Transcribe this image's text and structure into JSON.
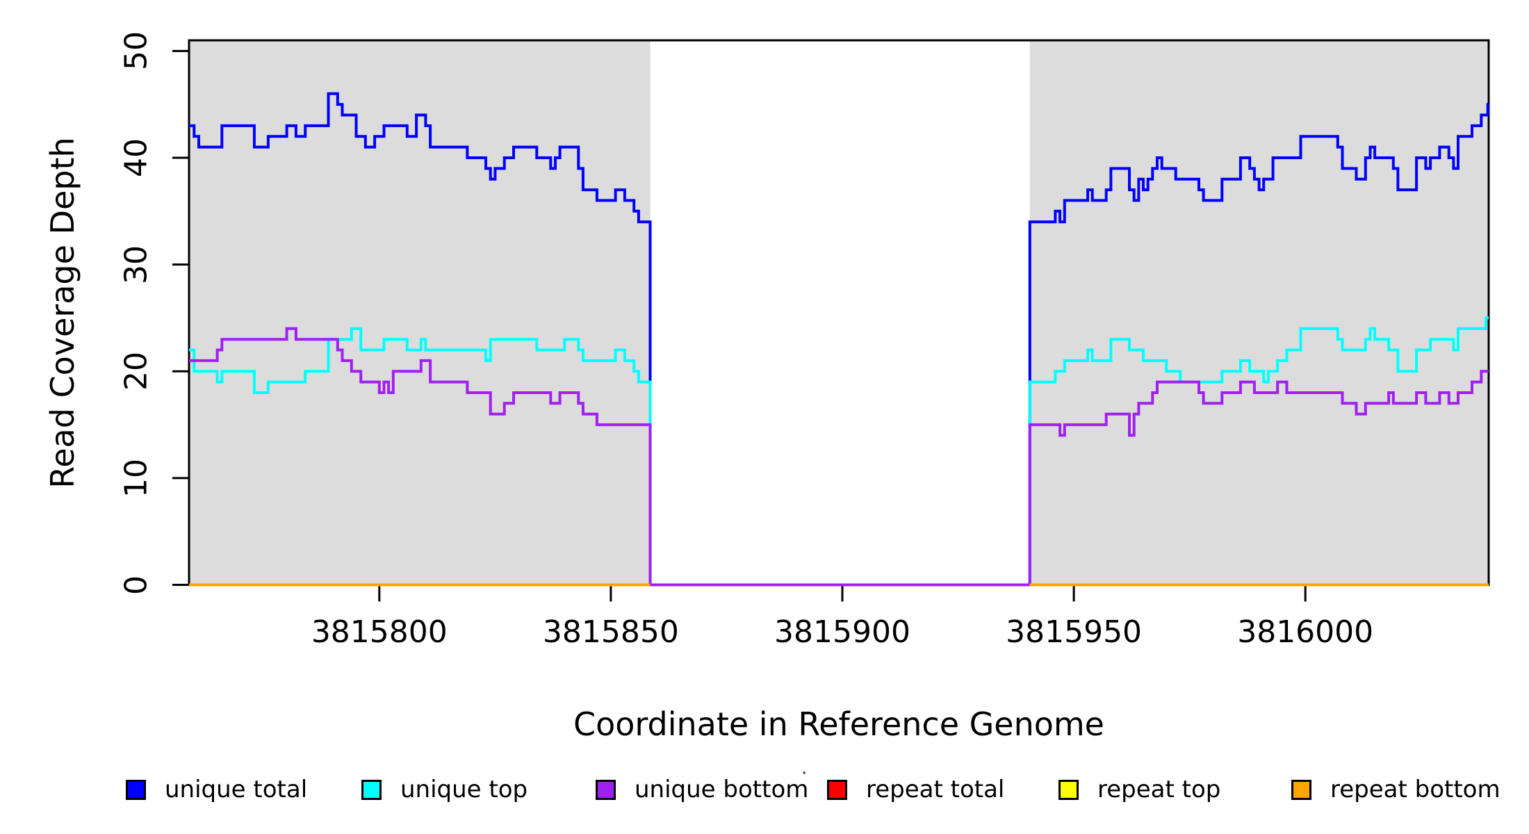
{
  "figure": {
    "y_axis_title": "Read Coverage Depth",
    "x_axis_title": "Coordinate in Reference Genome"
  },
  "legend": {
    "stray_mark": "·",
    "items": [
      {
        "label": "unique total",
        "color": "#0000FF"
      },
      {
        "label": "unique top",
        "color": "#00FFFF"
      },
      {
        "label": "unique bottom",
        "color": "#A020F0"
      },
      {
        "label": "repeat total",
        "color": "#FF0000"
      },
      {
        "label": "repeat top",
        "color": "#FFFF00"
      },
      {
        "label": "repeat bottom",
        "color": "#FFA500"
      }
    ]
  },
  "chart_data": {
    "type": "line",
    "step": true,
    "title": "",
    "xlabel": "Coordinate in Reference Genome",
    "ylabel": "Read Coverage Depth",
    "xlim": [
      3815758.9,
      3816039.6
    ],
    "ylim": [
      0,
      51
    ],
    "x_ticks": [
      "3815800",
      "3815850",
      "3815900",
      "3815950",
      "3816000"
    ],
    "x_tick_values": [
      3815800,
      3815850,
      3815900,
      3815950,
      3816000
    ],
    "y_ticks": [
      "0",
      "10",
      "20",
      "30",
      "40",
      "50"
    ],
    "y_tick_values": [
      0,
      10,
      20,
      30,
      40,
      50
    ],
    "grid": false,
    "legend_position": "bottom",
    "shade_color": "#DCDCDC",
    "box_color": "#000000",
    "shaded_regions": [
      {
        "from": 3815758.9,
        "to": 3815858.5
      },
      {
        "from": 3815940.5,
        "to": 3816039.6
      }
    ],
    "gap_region": {
      "from": 3815858.5,
      "to": 3815940.5,
      "note": "zero coverage gap"
    },
    "series": [
      {
        "name": "unique total",
        "color": "#0000FF",
        "segments": [
          [
            [
              3815758.9,
              43
            ],
            [
              3815760,
              42
            ],
            [
              3815761,
              41
            ],
            [
              3815766,
              43
            ],
            [
              3815773,
              41
            ],
            [
              3815776,
              42
            ],
            [
              3815780,
              43
            ],
            [
              3815782,
              42
            ],
            [
              3815784,
              43
            ],
            [
              3815789,
              46
            ],
            [
              3815791,
              45
            ],
            [
              3815792,
              44
            ],
            [
              3815795,
              42
            ],
            [
              3815797,
              41
            ],
            [
              3815799,
              42
            ],
            [
              3815801,
              43
            ],
            [
              3815806,
              42
            ],
            [
              3815808,
              44
            ],
            [
              3815810,
              43
            ],
            [
              3815811,
              41
            ],
            [
              3815819,
              40
            ],
            [
              3815823,
              39
            ],
            [
              3815824,
              38
            ],
            [
              3815825,
              39
            ],
            [
              3815827,
              40
            ],
            [
              3815829,
              41
            ],
            [
              3815834,
              40
            ],
            [
              3815837,
              39
            ],
            [
              3815838,
              40
            ],
            [
              3815839,
              41
            ],
            [
              3815843,
              39
            ],
            [
              3815844,
              37
            ],
            [
              3815847,
              36
            ],
            [
              3815851,
              37
            ],
            [
              3815853,
              36
            ],
            [
              3815855,
              35
            ],
            [
              3815856,
              34
            ],
            [
              3815858.5,
              0
            ],
            [
              3815940.5,
              34
            ],
            [
              3815946,
              35
            ],
            [
              3815947,
              34
            ],
            [
              3815948,
              36
            ],
            [
              3815953,
              37
            ],
            [
              3815954,
              36
            ],
            [
              3815957,
              37
            ],
            [
              3815958,
              39
            ],
            [
              3815962,
              37
            ],
            [
              3815963,
              36
            ],
            [
              3815964,
              38
            ],
            [
              3815965,
              37
            ],
            [
              3815966,
              38
            ],
            [
              3815967,
              39
            ],
            [
              3815968,
              40
            ],
            [
              3815969,
              39
            ],
            [
              3815972,
              38
            ],
            [
              3815977,
              37
            ],
            [
              3815978,
              36
            ],
            [
              3815982,
              38
            ],
            [
              3815986,
              40
            ],
            [
              3815988,
              39
            ],
            [
              3815989,
              38
            ],
            [
              3815990,
              37
            ],
            [
              3815991,
              38
            ],
            [
              3815993,
              40
            ],
            [
              3815999,
              42
            ],
            [
              3816007,
              41
            ],
            [
              3816008,
              39
            ],
            [
              3816011,
              38
            ],
            [
              3816013,
              40
            ],
            [
              3816014,
              41
            ],
            [
              3816015,
              40
            ],
            [
              3816019,
              39
            ],
            [
              3816020,
              37
            ],
            [
              3816024,
              40
            ],
            [
              3816026,
              39
            ],
            [
              3816027,
              40
            ],
            [
              3816029,
              41
            ],
            [
              3816031,
              40
            ],
            [
              3816032,
              39
            ],
            [
              3816033,
              42
            ],
            [
              3816036,
              43
            ],
            [
              3816038,
              44
            ],
            [
              3816039.4,
              45
            ],
            [
              3816039.6,
              45
            ]
          ]
        ]
      },
      {
        "name": "unique top",
        "color": "#00FFFF",
        "segments": [
          [
            [
              3815758.9,
              22
            ],
            [
              3815760,
              20
            ],
            [
              3815765,
              19
            ],
            [
              3815766,
              20
            ],
            [
              3815773,
              18
            ],
            [
              3815776,
              19
            ],
            [
              3815784,
              20
            ],
            [
              3815789,
              23
            ],
            [
              3815794,
              24
            ],
            [
              3815796,
              22
            ],
            [
              3815801,
              23
            ],
            [
              3815806,
              22
            ],
            [
              3815809,
              23
            ],
            [
              3815810,
              22
            ],
            [
              3815823,
              21
            ],
            [
              3815824,
              23
            ],
            [
              3815834,
              22
            ],
            [
              3815840,
              23
            ],
            [
              3815843,
              22
            ],
            [
              3815844,
              21
            ],
            [
              3815851,
              22
            ],
            [
              3815853,
              21
            ],
            [
              3815855,
              20
            ],
            [
              3815856,
              19
            ],
            [
              3815858.5,
              0
            ],
            [
              3815940.5,
              19
            ],
            [
              3815946,
              20
            ],
            [
              3815948,
              21
            ],
            [
              3815953,
              22
            ],
            [
              3815954,
              21
            ],
            [
              3815958,
              23
            ],
            [
              3815962,
              22
            ],
            [
              3815965,
              21
            ],
            [
              3815970,
              20
            ],
            [
              3815973,
              19
            ],
            [
              3815982,
              20
            ],
            [
              3815986,
              21
            ],
            [
              3815988,
              20
            ],
            [
              3815991,
              19
            ],
            [
              3815992,
              20
            ],
            [
              3815994,
              21
            ],
            [
              3815996,
              22
            ],
            [
              3815999,
              24
            ],
            [
              3816007,
              23
            ],
            [
              3816008,
              22
            ],
            [
              3816013,
              23
            ],
            [
              3816014,
              24
            ],
            [
              3816015,
              23
            ],
            [
              3816018,
              22
            ],
            [
              3816020,
              20
            ],
            [
              3816024,
              22
            ],
            [
              3816027,
              23
            ],
            [
              3816032,
              22
            ],
            [
              3816033,
              24
            ],
            [
              3816039,
              25
            ],
            [
              3816039.6,
              25
            ]
          ]
        ]
      },
      {
        "name": "unique bottom",
        "color": "#A020F0",
        "segments": [
          [
            [
              3815758.9,
              21
            ],
            [
              3815765,
              22
            ],
            [
              3815766,
              23
            ],
            [
              3815780,
              24
            ],
            [
              3815782,
              23
            ],
            [
              3815791,
              22
            ],
            [
              3815792,
              21
            ],
            [
              3815794,
              20
            ],
            [
              3815796,
              19
            ],
            [
              3815800,
              18
            ],
            [
              3815801,
              19
            ],
            [
              3815802,
              18
            ],
            [
              3815803,
              20
            ],
            [
              3815809,
              21
            ],
            [
              3815811,
              19
            ],
            [
              3815819,
              18
            ],
            [
              3815824,
              16
            ],
            [
              3815827,
              17
            ],
            [
              3815829,
              18
            ],
            [
              3815837,
              17
            ],
            [
              3815839,
              18
            ],
            [
              3815843,
              17
            ],
            [
              3815844,
              16
            ],
            [
              3815847,
              15
            ],
            [
              3815858.5,
              0
            ],
            [
              3815940.5,
              15
            ],
            [
              3815947,
              14
            ],
            [
              3815948,
              15
            ],
            [
              3815957,
              16
            ],
            [
              3815962,
              14
            ],
            [
              3815963,
              16
            ],
            [
              3815964,
              17
            ],
            [
              3815967,
              18
            ],
            [
              3815968,
              19
            ],
            [
              3815977,
              18
            ],
            [
              3815978,
              17
            ],
            [
              3815982,
              18
            ],
            [
              3815986,
              19
            ],
            [
              3815989,
              18
            ],
            [
              3815994,
              19
            ],
            [
              3815996,
              18
            ],
            [
              3816008,
              17
            ],
            [
              3816011,
              16
            ],
            [
              3816013,
              17
            ],
            [
              3816018,
              18
            ],
            [
              3816019,
              17
            ],
            [
              3816024,
              18
            ],
            [
              3816026,
              17
            ],
            [
              3816029,
              18
            ],
            [
              3816031,
              17
            ],
            [
              3816033,
              18
            ],
            [
              3816036,
              19
            ],
            [
              3816038,
              20
            ],
            [
              3816039.6,
              20
            ]
          ]
        ]
      },
      {
        "name": "repeat total",
        "color": "#FF0000",
        "segments": [
          [
            [
              3815758.9,
              0
            ],
            [
              3815858.5,
              0
            ]
          ],
          [
            [
              3815940.5,
              0
            ],
            [
              3816039.6,
              0
            ]
          ]
        ]
      },
      {
        "name": "repeat top",
        "color": "#FFFF00",
        "segments": [
          [
            [
              3815758.9,
              0
            ],
            [
              3815858.5,
              0
            ]
          ],
          [
            [
              3815940.5,
              0
            ],
            [
              3816039.6,
              0
            ]
          ]
        ]
      },
      {
        "name": "repeat bottom",
        "color": "#FFA500",
        "segments": [
          [
            [
              3815758.9,
              0
            ],
            [
              3815858.5,
              0
            ]
          ],
          [
            [
              3815940.5,
              0
            ],
            [
              3816039.6,
              0
            ]
          ]
        ]
      }
    ]
  }
}
